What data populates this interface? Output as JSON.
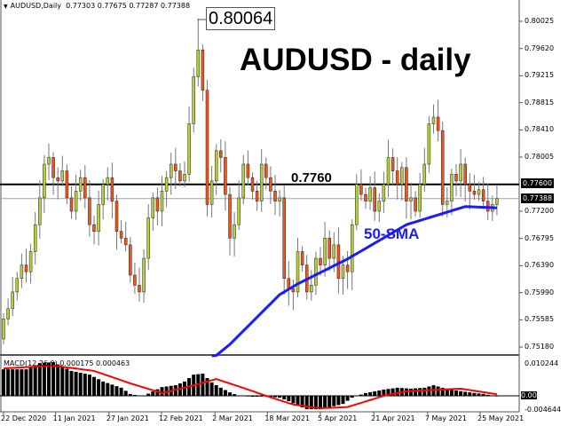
{
  "header": {
    "symbol_tf": "AUDUSD,Daily",
    "ohlc": "0.77303 0.77675 0.77287 0.77388"
  },
  "annotations": {
    "title": "AUDUSD - daily",
    "sma_label": "50-SMA",
    "level_label": "0.7760",
    "peak_label": "0.80064"
  },
  "macd": {
    "label": "MACD(12,26,9) 0.000175 0.000463"
  },
  "colors": {
    "bull": "#b4d236",
    "bear": "#f0561c",
    "sma": "#1a1aff",
    "signal": "#ff0000",
    "level": "#000000",
    "current": "#9a9ae0"
  },
  "chart_data": {
    "type": "candlestick",
    "ylim": [
      0.75,
      0.803
    ],
    "price_ticks": [
      "0.80025",
      "0.79620",
      "0.79215",
      "0.78815",
      "0.78410",
      "0.78005",
      "0.77200",
      "0.76795",
      "0.76390",
      "0.75990",
      "0.75585",
      "0.75180"
    ],
    "price_tick_values": [
      0.80025,
      0.7962,
      0.79215,
      0.78815,
      0.7841,
      0.78005,
      0.772,
      0.76795,
      0.7639,
      0.7599,
      0.75585,
      0.7518
    ],
    "level_tag": "0.77600",
    "level_value": 0.776,
    "current_tag": "0.77388",
    "current_value": 0.77388,
    "peak_high": 0.80064,
    "peak_bar": 43,
    "x_labels": [
      "22 Dec 2020",
      "11 Jan 2021",
      "27 Jan 2021",
      "12 Feb 2021",
      "2 Mar 2021",
      "18 Mar 2021",
      "5 Apr 2021",
      "21 Apr 2021",
      "7 May 2021",
      "25 May 2021"
    ],
    "first_open": 0.753,
    "closes": [
      0.756,
      0.7575,
      0.76,
      0.762,
      0.764,
      0.763,
      0.766,
      0.77,
      0.774,
      0.779,
      0.78,
      0.777,
      0.7765,
      0.778,
      0.774,
      0.772,
      0.775,
      0.777,
      0.774,
      0.77,
      0.769,
      0.773,
      0.776,
      0.777,
      0.7735,
      0.769,
      0.768,
      0.767,
      0.7625,
      0.761,
      0.76,
      0.765,
      0.771,
      0.774,
      0.772,
      0.775,
      0.777,
      0.779,
      0.778,
      0.7765,
      0.7775,
      0.785,
      0.792,
      0.796,
      0.79,
      0.773,
      0.7765,
      0.781,
      0.78,
      0.7745,
      0.768,
      0.77,
      0.774,
      0.779,
      0.777,
      0.775,
      0.7735,
      0.779,
      0.777,
      0.775,
      0.7735,
      0.774,
      0.762,
      0.7605,
      0.76,
      0.766,
      0.764,
      0.76,
      0.761,
      0.765,
      0.764,
      0.768,
      0.765,
      0.767,
      0.762,
      0.764,
      0.763,
      0.77,
      0.776,
      0.7745,
      0.7735,
      0.7755,
      0.772,
      0.7735,
      0.776,
      0.78,
      0.778,
      0.776,
      0.7785,
      0.7735,
      0.774,
      0.772,
      0.776,
      0.779,
      0.785,
      0.786,
      0.784,
      0.773,
      0.7735,
      0.7775,
      0.7765,
      0.779,
      0.776,
      0.775,
      0.7745,
      0.7752,
      0.7735,
      0.772,
      0.773,
      0.77388
    ],
    "sma50_points": [
      [
        46,
        0.75
      ],
      [
        50,
        0.7522
      ],
      [
        61,
        0.7596
      ],
      [
        65,
        0.7612
      ],
      [
        76,
        0.7649
      ],
      [
        89,
        0.77
      ],
      [
        102,
        0.7727
      ],
      [
        109,
        0.7725
      ]
    ],
    "macd_range": [
      -0.004644,
      0.010244
    ],
    "macd_ticks": [
      "0.010244",
      "0.00",
      "-0.004644"
    ],
    "macd_histogram_points": [
      [
        0,
        0.0085
      ],
      [
        5,
        0.0085
      ],
      [
        8,
        0.0105
      ],
      [
        11,
        0.0108
      ],
      [
        15,
        0.008
      ],
      [
        19,
        0.0068
      ],
      [
        22,
        0.0046
      ],
      [
        26,
        0.0026
      ],
      [
        28,
        0.0006
      ],
      [
        30,
        0.0
      ],
      [
        31,
        0.0
      ],
      [
        33,
        0.0014
      ],
      [
        35,
        0.0028
      ],
      [
        38,
        0.0034
      ],
      [
        40,
        0.0046
      ],
      [
        42,
        0.0068
      ],
      [
        44,
        0.0071
      ],
      [
        46,
        0.0043
      ],
      [
        48,
        0.0026
      ],
      [
        50,
        0.0011
      ],
      [
        52,
        0.0
      ],
      [
        55,
        -0.0003
      ],
      [
        58,
        -0.0002
      ],
      [
        61,
        -0.0006
      ],
      [
        63,
        -0.0017
      ],
      [
        65,
        -0.0031
      ],
      [
        67,
        -0.0043
      ],
      [
        70,
        -0.0043
      ],
      [
        72,
        -0.0037
      ],
      [
        75,
        -0.0026
      ],
      [
        77,
        -0.0006
      ],
      [
        80,
        0.0009
      ],
      [
        84,
        0.002
      ],
      [
        87,
        0.0026
      ],
      [
        90,
        0.0023
      ],
      [
        93,
        0.0026
      ],
      [
        95,
        0.0034
      ],
      [
        97,
        0.0026
      ],
      [
        100,
        0.0017
      ],
      [
        103,
        0.0011
      ],
      [
        106,
        0.0006
      ],
      [
        109,
        -0.0002
      ]
    ],
    "macd_signal_points": [
      [
        0,
        0.0088
      ],
      [
        11,
        0.0097
      ],
      [
        20,
        0.008
      ],
      [
        28,
        0.004
      ],
      [
        35,
        0.0009
      ],
      [
        41,
        0.003
      ],
      [
        47,
        0.0054
      ],
      [
        52,
        0.003
      ],
      [
        58,
        0.0
      ],
      [
        64,
        -0.0028
      ],
      [
        70,
        -0.004
      ],
      [
        76,
        -0.0036
      ],
      [
        84,
        0.0
      ],
      [
        89,
        0.0015
      ],
      [
        101,
        0.0023
      ],
      [
        109,
        0.0005
      ]
    ]
  }
}
